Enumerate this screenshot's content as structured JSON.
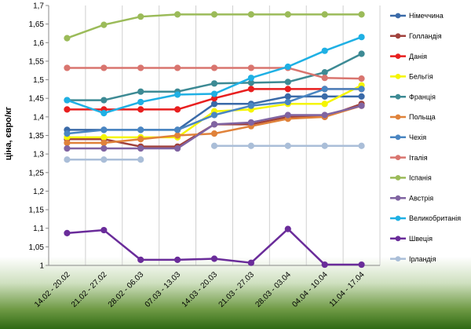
{
  "chart_data": {
    "type": "line",
    "title": "",
    "xlabel": "",
    "ylabel": "ціна, євро/кг",
    "ylim": [
      1,
      1.7
    ],
    "ytick_step": 0.05,
    "yticks": [
      "1",
      "1,05",
      "1,1",
      "1,15",
      "1,2",
      "1,25",
      "1,3",
      "1,35",
      "1,4",
      "1,45",
      "1,5",
      "1,55",
      "1,6",
      "1,65",
      "1,7"
    ],
    "grid": "vertical",
    "legend_position": "right",
    "categories": [
      "14.02 - 20.02",
      "21.02 - 27.02",
      "28.02 - 06.03",
      "07.03 - 13.03",
      "14.03 - 20.03",
      "21.03 - 27.03",
      "28.03 - 03.04",
      "04.04 - 10.04",
      "11.04 - 17.04"
    ],
    "series": [
      {
        "name": "Німеччина",
        "color": "#3a6aa8",
        "values": [
          1.365,
          1.365,
          1.365,
          1.365,
          1.435,
          1.435,
          1.455,
          1.455,
          1.455
        ]
      },
      {
        "name": "Голландія",
        "color": "#a0413c",
        "values": [
          1.34,
          1.34,
          1.32,
          1.32,
          1.38,
          1.38,
          1.4,
          1.4,
          1.435
        ]
      },
      {
        "name": "Данія",
        "color": "#e81f1f",
        "values": [
          1.42,
          1.42,
          1.42,
          1.42,
          1.45,
          1.475,
          1.475,
          1.475,
          1.475
        ]
      },
      {
        "name": "Бельгія",
        "color": "#f5f500",
        "values": [
          1.345,
          1.345,
          1.345,
          1.345,
          1.415,
          1.42,
          1.435,
          1.435,
          1.485
        ]
      },
      {
        "name": "Франція",
        "color": "#3d8a94",
        "values": [
          1.445,
          1.445,
          1.468,
          1.468,
          1.49,
          1.492,
          1.494,
          1.52,
          1.57
        ]
      },
      {
        "name": "Польща",
        "color": "#e0823a",
        "values": [
          1.33,
          1.33,
          1.34,
          1.35,
          1.355,
          1.375,
          1.395,
          1.4,
          1.43
        ]
      },
      {
        "name": "Чехія",
        "color": "#4a86c2",
        "values": [
          1.355,
          1.365,
          1.365,
          1.365,
          1.405,
          1.43,
          1.44,
          1.475,
          1.475
        ]
      },
      {
        "name": "Італія",
        "color": "#d9756f",
        "values": [
          1.532,
          1.532,
          1.532,
          1.532,
          1.532,
          1.532,
          1.532,
          1.505,
          1.503
        ]
      },
      {
        "name": "Іспанія",
        "color": "#9bbb59",
        "values": [
          1.612,
          1.648,
          1.67,
          1.676,
          1.676,
          1.676,
          1.676,
          1.676,
          1.676
        ]
      },
      {
        "name": "Австрія",
        "color": "#8064a2",
        "values": [
          1.315,
          1.315,
          1.315,
          1.315,
          1.38,
          1.385,
          1.405,
          1.405,
          1.43
        ]
      },
      {
        "name": "Великобританія",
        "color": "#1fb0e4",
        "values": [
          1.445,
          1.41,
          1.44,
          1.46,
          1.462,
          1.505,
          1.535,
          1.578,
          1.615
        ]
      },
      {
        "name": "Швеція",
        "color": "#6a2c9a",
        "values": [
          1.087,
          1.095,
          1.015,
          1.015,
          1.018,
          1.007,
          1.098,
          1.002,
          1.002
        ]
      },
      {
        "name": "Ірландія",
        "color": "#aabed8",
        "values": [
          1.285,
          1.285,
          1.285,
          null,
          1.322,
          1.322,
          1.322,
          1.322,
          1.322
        ]
      }
    ]
  }
}
